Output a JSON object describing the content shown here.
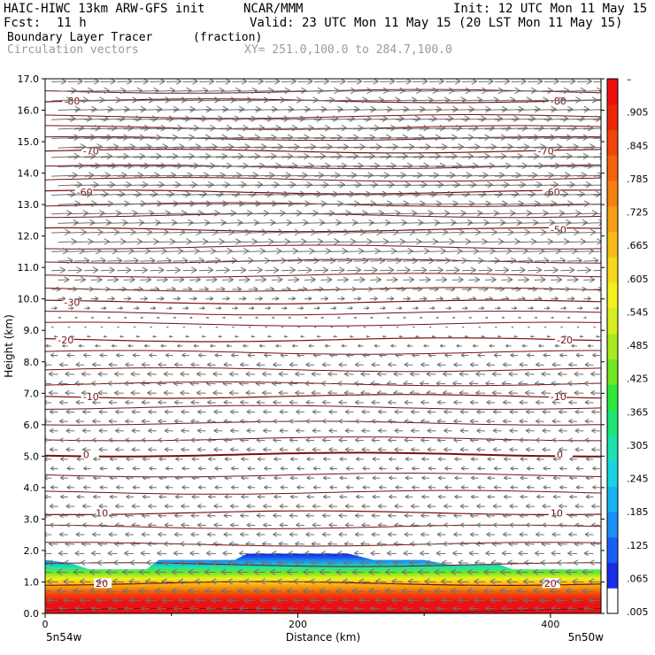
{
  "header": {
    "title_left": "HAIC-HIWC 13km ARW-GFS init",
    "org": "NCAR/MMM",
    "init": "Init: 12 UTC Mon 11 May 15",
    "fcst_label": "Fcst:",
    "fcst_value": "11 h",
    "valid": "Valid: 23 UTC Mon 11 May 15 (20 LST Mon 11 May 15)",
    "field_name": "Boundary Layer Tracer",
    "field_units": "(fraction)",
    "vector_label": "Circulation vectors",
    "xy_range": "XY= 251.0,100.0 to 284.7,100.0"
  },
  "colors": {
    "contour": "#7a1010",
    "vector": "#707070",
    "colorbar": [
      "#ffffff",
      "#1a2de8",
      "#1a5ff5",
      "#1a8ff8",
      "#17b4f2",
      "#19d4e0",
      "#19e3b0",
      "#1ee676",
      "#2fe83a",
      "#6fe81f",
      "#a8ea1e",
      "#d6ee1e",
      "#f4f01e",
      "#f7d81a",
      "#f7bd16",
      "#f79f12",
      "#f6800f",
      "#f5620c",
      "#f2440a",
      "#ee2608",
      "#ee1010"
    ]
  },
  "chart_data": {
    "type": "heatmap",
    "title": "Boundary Layer Tracer",
    "units": "(fraction)",
    "xlabel": "Distance (km)",
    "ylabel": "Height (km)",
    "xlim": [
      0,
      440
    ],
    "ylim": [
      0,
      17
    ],
    "x_ticks": [
      0,
      200,
      400
    ],
    "x_tick_labels": [
      "0",
      "200",
      "400"
    ],
    "y_ticks": [
      0,
      1,
      2,
      3,
      4,
      5,
      6,
      7,
      8,
      9,
      10,
      11,
      12,
      13,
      14,
      15,
      16,
      17
    ],
    "y_tick_labels": [
      "0.0",
      "1.0",
      "2.0",
      "3.0",
      "4.0",
      "5.0",
      "6.0",
      "7.0",
      "8.0",
      "9.0",
      "10.0",
      "11.0",
      "12.0",
      "13.0",
      "14.0",
      "15.0",
      "16.0",
      "17.0"
    ],
    "x_end_labels": {
      "left": "5n54w",
      "right": "5n50w"
    },
    "colorbar_labels": [
      "–",
      ".905",
      ".845",
      ".785",
      ".725",
      ".665",
      ".605",
      ".545",
      ".485",
      ".425",
      ".365",
      ".305",
      ".245",
      ".185",
      ".125",
      ".065",
      ".005"
    ],
    "colorbar_levels": [
      0.005,
      0.065,
      0.125,
      0.185,
      0.245,
      0.305,
      0.365,
      0.425,
      0.485,
      0.545,
      0.605,
      0.665,
      0.725,
      0.785,
      0.845,
      0.905
    ],
    "tracer_top": {
      "x": [
        0,
        20,
        35,
        80,
        90,
        150,
        160,
        240,
        260,
        300,
        320,
        360,
        370,
        440
      ],
      "top_height": [
        1.7,
        1.6,
        1.4,
        1.4,
        1.7,
        1.7,
        1.9,
        1.9,
        1.7,
        1.7,
        1.55,
        1.55,
        1.4,
        1.4
      ]
    },
    "contours": [
      {
        "label": "-80",
        "height": 16.3,
        "label_x": [
          15,
          400
        ]
      },
      {
        "label": "-70",
        "height": 14.7,
        "label_x": [
          30,
          390
        ]
      },
      {
        "label": "-60",
        "height": 13.4,
        "label_x": [
          25,
          395
        ]
      },
      {
        "label": "-50",
        "height": 12.2,
        "label_x": [
          400
        ]
      },
      {
        "label": "-30",
        "height": 9.9,
        "label_x": [
          15
        ]
      },
      {
        "label": "-20",
        "height": 8.7,
        "label_x": [
          10,
          405
        ]
      },
      {
        "label": "-10",
        "height": 6.9,
        "label_x": [
          30,
          400
        ]
      },
      {
        "label": "0",
        "height": 5.05,
        "label_x": [
          30,
          405
        ]
      },
      {
        "label": "10",
        "height": 3.2,
        "label_x": [
          40,
          400
        ]
      },
      {
        "label": "20",
        "height": 0.95,
        "label_x": [
          40,
          395
        ]
      }
    ],
    "contour_heights_unlabeled": [
      0.1,
      1.55,
      2.2,
      2.75,
      3.85,
      4.4,
      5.55,
      6.05,
      6.55,
      7.3,
      7.75,
      8.3,
      9.2,
      9.55,
      10.3,
      10.75,
      11.2,
      11.65,
      12.65,
      13.0,
      13.8,
      14.2,
      15.1,
      15.45,
      15.8,
      16.6
    ],
    "vectors": {
      "rows": [
        {
          "height": 16.9,
          "u": 16
        },
        {
          "height": 16.6,
          "u": 20
        },
        {
          "height": 16.3,
          "u": 22
        },
        {
          "height": 16.0,
          "u": 24
        },
        {
          "height": 15.7,
          "u": 26
        },
        {
          "height": 15.4,
          "u": 28
        },
        {
          "height": 15.1,
          "u": 30
        },
        {
          "height": 14.8,
          "u": 30
        },
        {
          "height": 14.5,
          "u": 30
        },
        {
          "height": 14.2,
          "u": 28
        },
        {
          "height": 13.9,
          "u": 28
        },
        {
          "height": 13.6,
          "u": 26
        },
        {
          "height": 13.3,
          "u": 26
        },
        {
          "height": 13.0,
          "u": 24
        },
        {
          "height": 12.7,
          "u": 22
        },
        {
          "height": 12.4,
          "u": 22
        },
        {
          "height": 12.1,
          "u": 20
        },
        {
          "height": 11.8,
          "u": 20
        },
        {
          "height": 11.5,
          "u": 18
        },
        {
          "height": 11.2,
          "u": 16
        },
        {
          "height": 10.9,
          "u": 15
        },
        {
          "height": 10.6,
          "u": 12
        },
        {
          "height": 10.3,
          "u": 10
        },
        {
          "height": 10.0,
          "u": 8
        },
        {
          "height": 9.7,
          "u": 6
        },
        {
          "height": 9.4,
          "u": 3
        },
        {
          "height": 9.1,
          "u": 2
        },
        {
          "height": 8.8,
          "u": -4
        },
        {
          "height": 8.5,
          "u": -6
        },
        {
          "height": 8.2,
          "u": -8
        },
        {
          "height": 7.9,
          "u": -9
        },
        {
          "height": 7.6,
          "u": -10
        },
        {
          "height": 7.3,
          "u": -10
        },
        {
          "height": 7.0,
          "u": -10
        },
        {
          "height": 6.7,
          "u": -9
        },
        {
          "height": 6.4,
          "u": -9
        },
        {
          "height": 6.1,
          "u": -9
        },
        {
          "height": 5.8,
          "u": -9
        },
        {
          "height": 5.5,
          "u": -9
        },
        {
          "height": 5.2,
          "u": -9
        },
        {
          "height": 4.9,
          "u": -8
        },
        {
          "height": 4.6,
          "u": -8
        },
        {
          "height": 4.3,
          "u": -8
        },
        {
          "height": 4.0,
          "u": -8
        },
        {
          "height": 3.7,
          "u": -8
        },
        {
          "height": 3.4,
          "u": -9
        },
        {
          "height": 3.1,
          "u": -9
        },
        {
          "height": 2.8,
          "u": -9
        },
        {
          "height": 2.5,
          "u": -9
        },
        {
          "height": 2.2,
          "u": -10
        },
        {
          "height": 1.9,
          "u": -10
        },
        {
          "height": 1.6,
          "u": -11
        },
        {
          "height": 1.3,
          "u": -12
        },
        {
          "height": 1.0,
          "u": -12
        },
        {
          "height": 0.7,
          "u": -12
        },
        {
          "height": 0.4,
          "u": -12
        },
        {
          "height": 0.15,
          "u": -10
        }
      ],
      "x_spacing_km": 13
    }
  }
}
